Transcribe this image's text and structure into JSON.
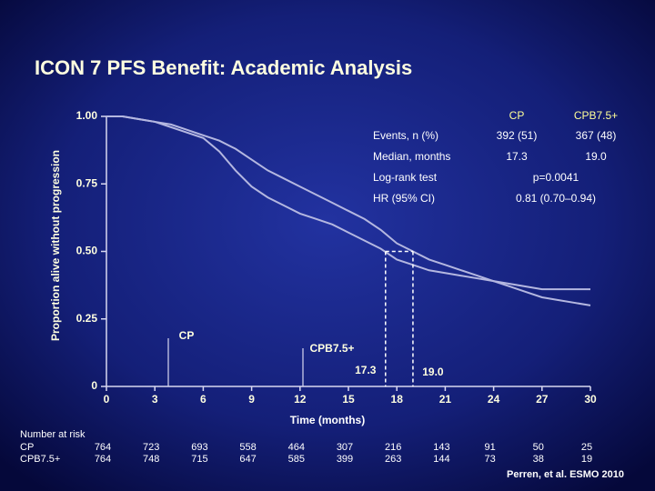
{
  "chart_data": {
    "type": "line",
    "title": "ICON 7 PFS Benefit: Academic Analysis",
    "x_label": "Time (months)",
    "y_label": "Proportion alive without progression",
    "x": [
      0,
      1,
      2,
      3,
      4,
      5,
      6,
      7,
      8,
      9,
      10,
      11,
      12,
      13,
      14,
      15,
      16,
      17,
      18,
      19,
      20,
      21,
      22,
      23,
      24,
      25,
      26,
      27,
      28,
      29,
      30
    ],
    "series": [
      {
        "name": "CP",
        "color": "#b4b7e0",
        "values": [
          1.0,
          1.0,
          0.99,
          0.98,
          0.96,
          0.94,
          0.92,
          0.87,
          0.8,
          0.74,
          0.7,
          0.67,
          0.64,
          0.62,
          0.6,
          0.57,
          0.54,
          0.51,
          0.47,
          0.45,
          0.43,
          0.42,
          0.41,
          0.4,
          0.39,
          0.38,
          0.37,
          0.36,
          0.36,
          0.36,
          0.36
        ]
      },
      {
        "name": "CPB7.5+",
        "color": "#b4b7e0",
        "values": [
          1.0,
          1.0,
          0.99,
          0.98,
          0.97,
          0.95,
          0.93,
          0.91,
          0.88,
          0.84,
          0.8,
          0.77,
          0.74,
          0.71,
          0.68,
          0.65,
          0.62,
          0.58,
          0.53,
          0.5,
          0.47,
          0.45,
          0.43,
          0.41,
          0.39,
          0.37,
          0.35,
          0.33,
          0.32,
          0.31,
          0.3
        ]
      }
    ],
    "xlim": [
      0,
      30
    ],
    "xticks": [
      0,
      3,
      6,
      9,
      12,
      15,
      18,
      21,
      24,
      27,
      30
    ],
    "ylim": [
      0,
      1
    ],
    "yticks": [
      0,
      0.25,
      {
        "value": 0.5,
        "label": "0.50"
      },
      0.75,
      {
        "value": 1,
        "label": "1.00"
      }
    ],
    "medians": [
      17.3,
      {
        "value": 19,
        "label": "19.0"
      }
    ],
    "stats_table": {
      "rows": [
        [
          "Events, n (%)",
          "392 (51)",
          "367 (48)"
        ],
        [
          "Median, months",
          "17.3",
          "19.0"
        ],
        [
          "Log-rank test",
          "p=0.0041"
        ],
        [
          "HR (95% CI)",
          "0.81 (0.70–0.94)"
        ]
      ]
    },
    "at_risk": {
      "title": "Number at risk",
      "rows": [
        [
          764,
          723,
          693,
          558,
          464,
          307,
          216,
          143,
          91,
          50,
          25
        ],
        [
          764,
          748,
          715,
          647,
          585,
          399,
          263,
          144,
          73,
          38,
          19
        ]
      ]
    },
    "source": "Perren, et al. ESMO 2010"
  }
}
